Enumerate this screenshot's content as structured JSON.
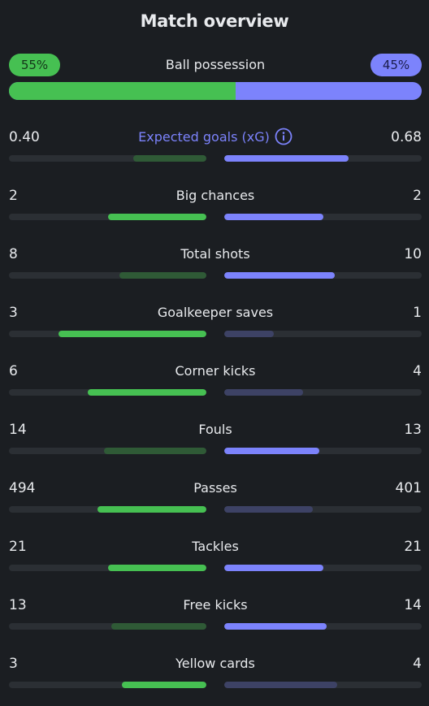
{
  "title": "Match overview",
  "possession": {
    "label": "Ball possession",
    "home": "55%",
    "away": "45%",
    "home_share": 0.55
  },
  "colors": {
    "home": "#46c052",
    "home_dim": "#2f5a36",
    "away": "#7c83fc",
    "away_dim": "#3d4265",
    "accent": "#7c83fc",
    "track": "#2b2f34"
  },
  "stats": [
    {
      "label": "Expected goals (xG)",
      "home": "0.40",
      "away": "0.68",
      "home_fill": 0.37,
      "away_fill": 0.63,
      "leader": "away",
      "accent": true,
      "icon": "info-icon"
    },
    {
      "label": "Big chances",
      "home": "2",
      "away": "2",
      "home_fill": 0.5,
      "away_fill": 0.5,
      "leader": "both"
    },
    {
      "label": "Total shots",
      "home": "8",
      "away": "10",
      "home_fill": 0.44,
      "away_fill": 0.56,
      "leader": "away"
    },
    {
      "label": "Goalkeeper saves",
      "home": "3",
      "away": "1",
      "home_fill": 0.75,
      "away_fill": 0.25,
      "leader": "home"
    },
    {
      "label": "Corner kicks",
      "home": "6",
      "away": "4",
      "home_fill": 0.6,
      "away_fill": 0.4,
      "leader": "home"
    },
    {
      "label": "Fouls",
      "home": "14",
      "away": "13",
      "home_fill": 0.52,
      "away_fill": 0.48,
      "leader": "away"
    },
    {
      "label": "Passes",
      "home": "494",
      "away": "401",
      "home_fill": 0.55,
      "away_fill": 0.45,
      "leader": "home"
    },
    {
      "label": "Tackles",
      "home": "21",
      "away": "21",
      "home_fill": 0.5,
      "away_fill": 0.5,
      "leader": "both"
    },
    {
      "label": "Free kicks",
      "home": "13",
      "away": "14",
      "home_fill": 0.48,
      "away_fill": 0.52,
      "leader": "away"
    },
    {
      "label": "Yellow cards",
      "home": "3",
      "away": "4",
      "home_fill": 0.43,
      "away_fill": 0.57,
      "leader": "home"
    }
  ]
}
